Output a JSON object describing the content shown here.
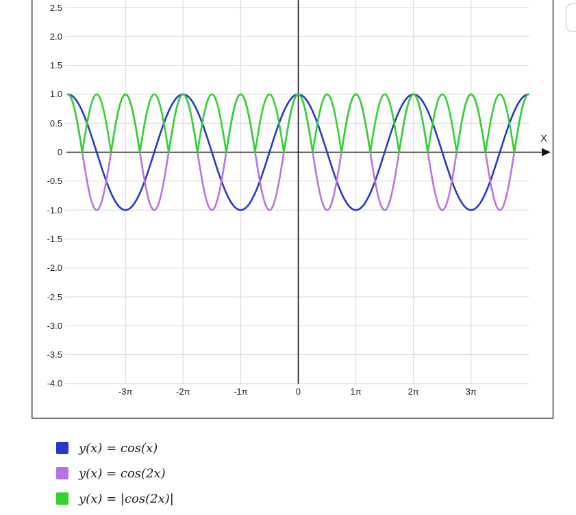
{
  "chart": {
    "x_axis_label": "X",
    "y_ticks": [
      {
        "label": "2.5",
        "value": 2.5
      },
      {
        "label": "2.0",
        "value": 2.0
      },
      {
        "label": "1.5",
        "value": 1.5
      },
      {
        "label": "1.0",
        "value": 1.0
      },
      {
        "label": "0.5",
        "value": 0.5
      },
      {
        "label": "0",
        "value": 0.0
      },
      {
        "label": "-0.5",
        "value": -0.5
      },
      {
        "label": "-1.0",
        "value": -1.0
      },
      {
        "label": "-1.5",
        "value": -1.5
      },
      {
        "label": "-2.0",
        "value": -2.0
      },
      {
        "label": "-2.5",
        "value": -2.5
      },
      {
        "label": "-3.0",
        "value": -3.0
      },
      {
        "label": "-3.5",
        "value": -3.5
      },
      {
        "label": "-4.0",
        "value": -4.0
      }
    ],
    "x_ticks": [
      {
        "label": "-3π",
        "value_pi": -3
      },
      {
        "label": "-2π",
        "value_pi": -2
      },
      {
        "label": "-1π",
        "value_pi": -1
      },
      {
        "label": "0",
        "value_pi": 0
      },
      {
        "label": "1π",
        "value_pi": 1
      },
      {
        "label": "2π",
        "value_pi": 2
      },
      {
        "label": "3π",
        "value_pi": 3
      }
    ],
    "colors": {
      "grid": "#d7d7d7",
      "axis": "#141414",
      "plot_border": "#3f3f3f",
      "tick_text": "#222222",
      "legend_text": "#1c1c1c"
    }
  },
  "chart_data": {
    "type": "line",
    "title": "",
    "x_domain_pi": [
      -4,
      4
    ],
    "x_ticks_pi": [
      -3,
      -2,
      -1,
      0,
      1,
      2,
      3
    ],
    "y_tick_range": [
      2.5,
      -4.0
    ],
    "y_tick_step": 0.5,
    "grid": true,
    "legend_position": "bottom-left",
    "series": [
      {
        "label": "y(x) = cos(x)",
        "expression": "cos(x)",
        "freq": 1,
        "abs": false,
        "amplitude": 1,
        "period_pi": 2,
        "color": "#2439c6"
      },
      {
        "label": "y(x) = cos(2x)",
        "expression": "cos(2x)",
        "freq": 2,
        "abs": false,
        "amplitude": 1,
        "period_pi": 1,
        "color": "#b873e2"
      },
      {
        "label": "y(x) = |cos(2x)|",
        "expression": "|cos(2x)|",
        "freq": 2,
        "abs": true,
        "amplitude": 1,
        "period_pi": 0.5,
        "color": "#30d130"
      }
    ]
  }
}
